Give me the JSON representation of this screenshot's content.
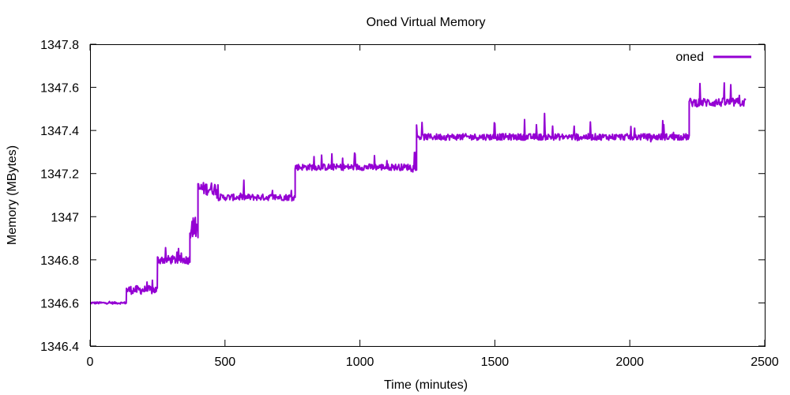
{
  "chart_data": {
    "type": "line",
    "title": "Oned Virtual Memory",
    "xlabel": "Time (minutes)",
    "ylabel": "Memory (MBytes)",
    "xlim": [
      0,
      2500
    ],
    "ylim": [
      1346.4,
      1347.8
    ],
    "x_ticks": [
      0,
      500,
      1000,
      1500,
      2000,
      2500
    ],
    "x_tick_labels": [
      "0",
      "500",
      "1000",
      "1500",
      "2000",
      "2500"
    ],
    "y_ticks": [
      1346.4,
      1346.6,
      1346.8,
      1347.0,
      1347.2,
      1347.4,
      1347.6,
      1347.8
    ],
    "y_tick_labels": [
      "1346.4",
      "1346.6",
      "1346.8",
      "1347",
      "1347.2",
      "1347.4",
      "1347.6",
      "1347.8"
    ],
    "grid": false,
    "legend": "top-right",
    "series": [
      {
        "name": "oned",
        "color": "#9400d3",
        "segments": [
          {
            "x_start": 0,
            "x_end": 135,
            "base": 1346.6,
            "noise": 0.005,
            "spikes": 0.01
          },
          {
            "x_start": 135,
            "x_end": 250,
            "base": 1346.66,
            "noise": 0.02,
            "spikes": 0.06
          },
          {
            "x_start": 250,
            "x_end": 370,
            "base": 1346.8,
            "noise": 0.02,
            "spikes": 0.06
          },
          {
            "x_start": 370,
            "x_end": 400,
            "base": 1346.95,
            "noise": 0.05,
            "spikes": 0.08
          },
          {
            "x_start": 400,
            "x_end": 470,
            "base": 1347.13,
            "noise": 0.03,
            "spikes": 0.06
          },
          {
            "x_start": 470,
            "x_end": 760,
            "base": 1347.09,
            "noise": 0.015,
            "spikes": 0.07
          },
          {
            "x_start": 760,
            "x_end": 1210,
            "base": 1347.23,
            "noise": 0.015,
            "spikes": 0.08
          },
          {
            "x_start": 1210,
            "x_end": 1320,
            "base": 1347.37,
            "noise": 0.015,
            "spikes": 0.07
          },
          {
            "x_start": 1320,
            "x_end": 2220,
            "base": 1347.37,
            "noise": 0.015,
            "spikes": 0.1
          },
          {
            "x_start": 2220,
            "x_end": 2430,
            "base": 1347.53,
            "noise": 0.02,
            "spikes": 0.1
          }
        ]
      }
    ]
  }
}
